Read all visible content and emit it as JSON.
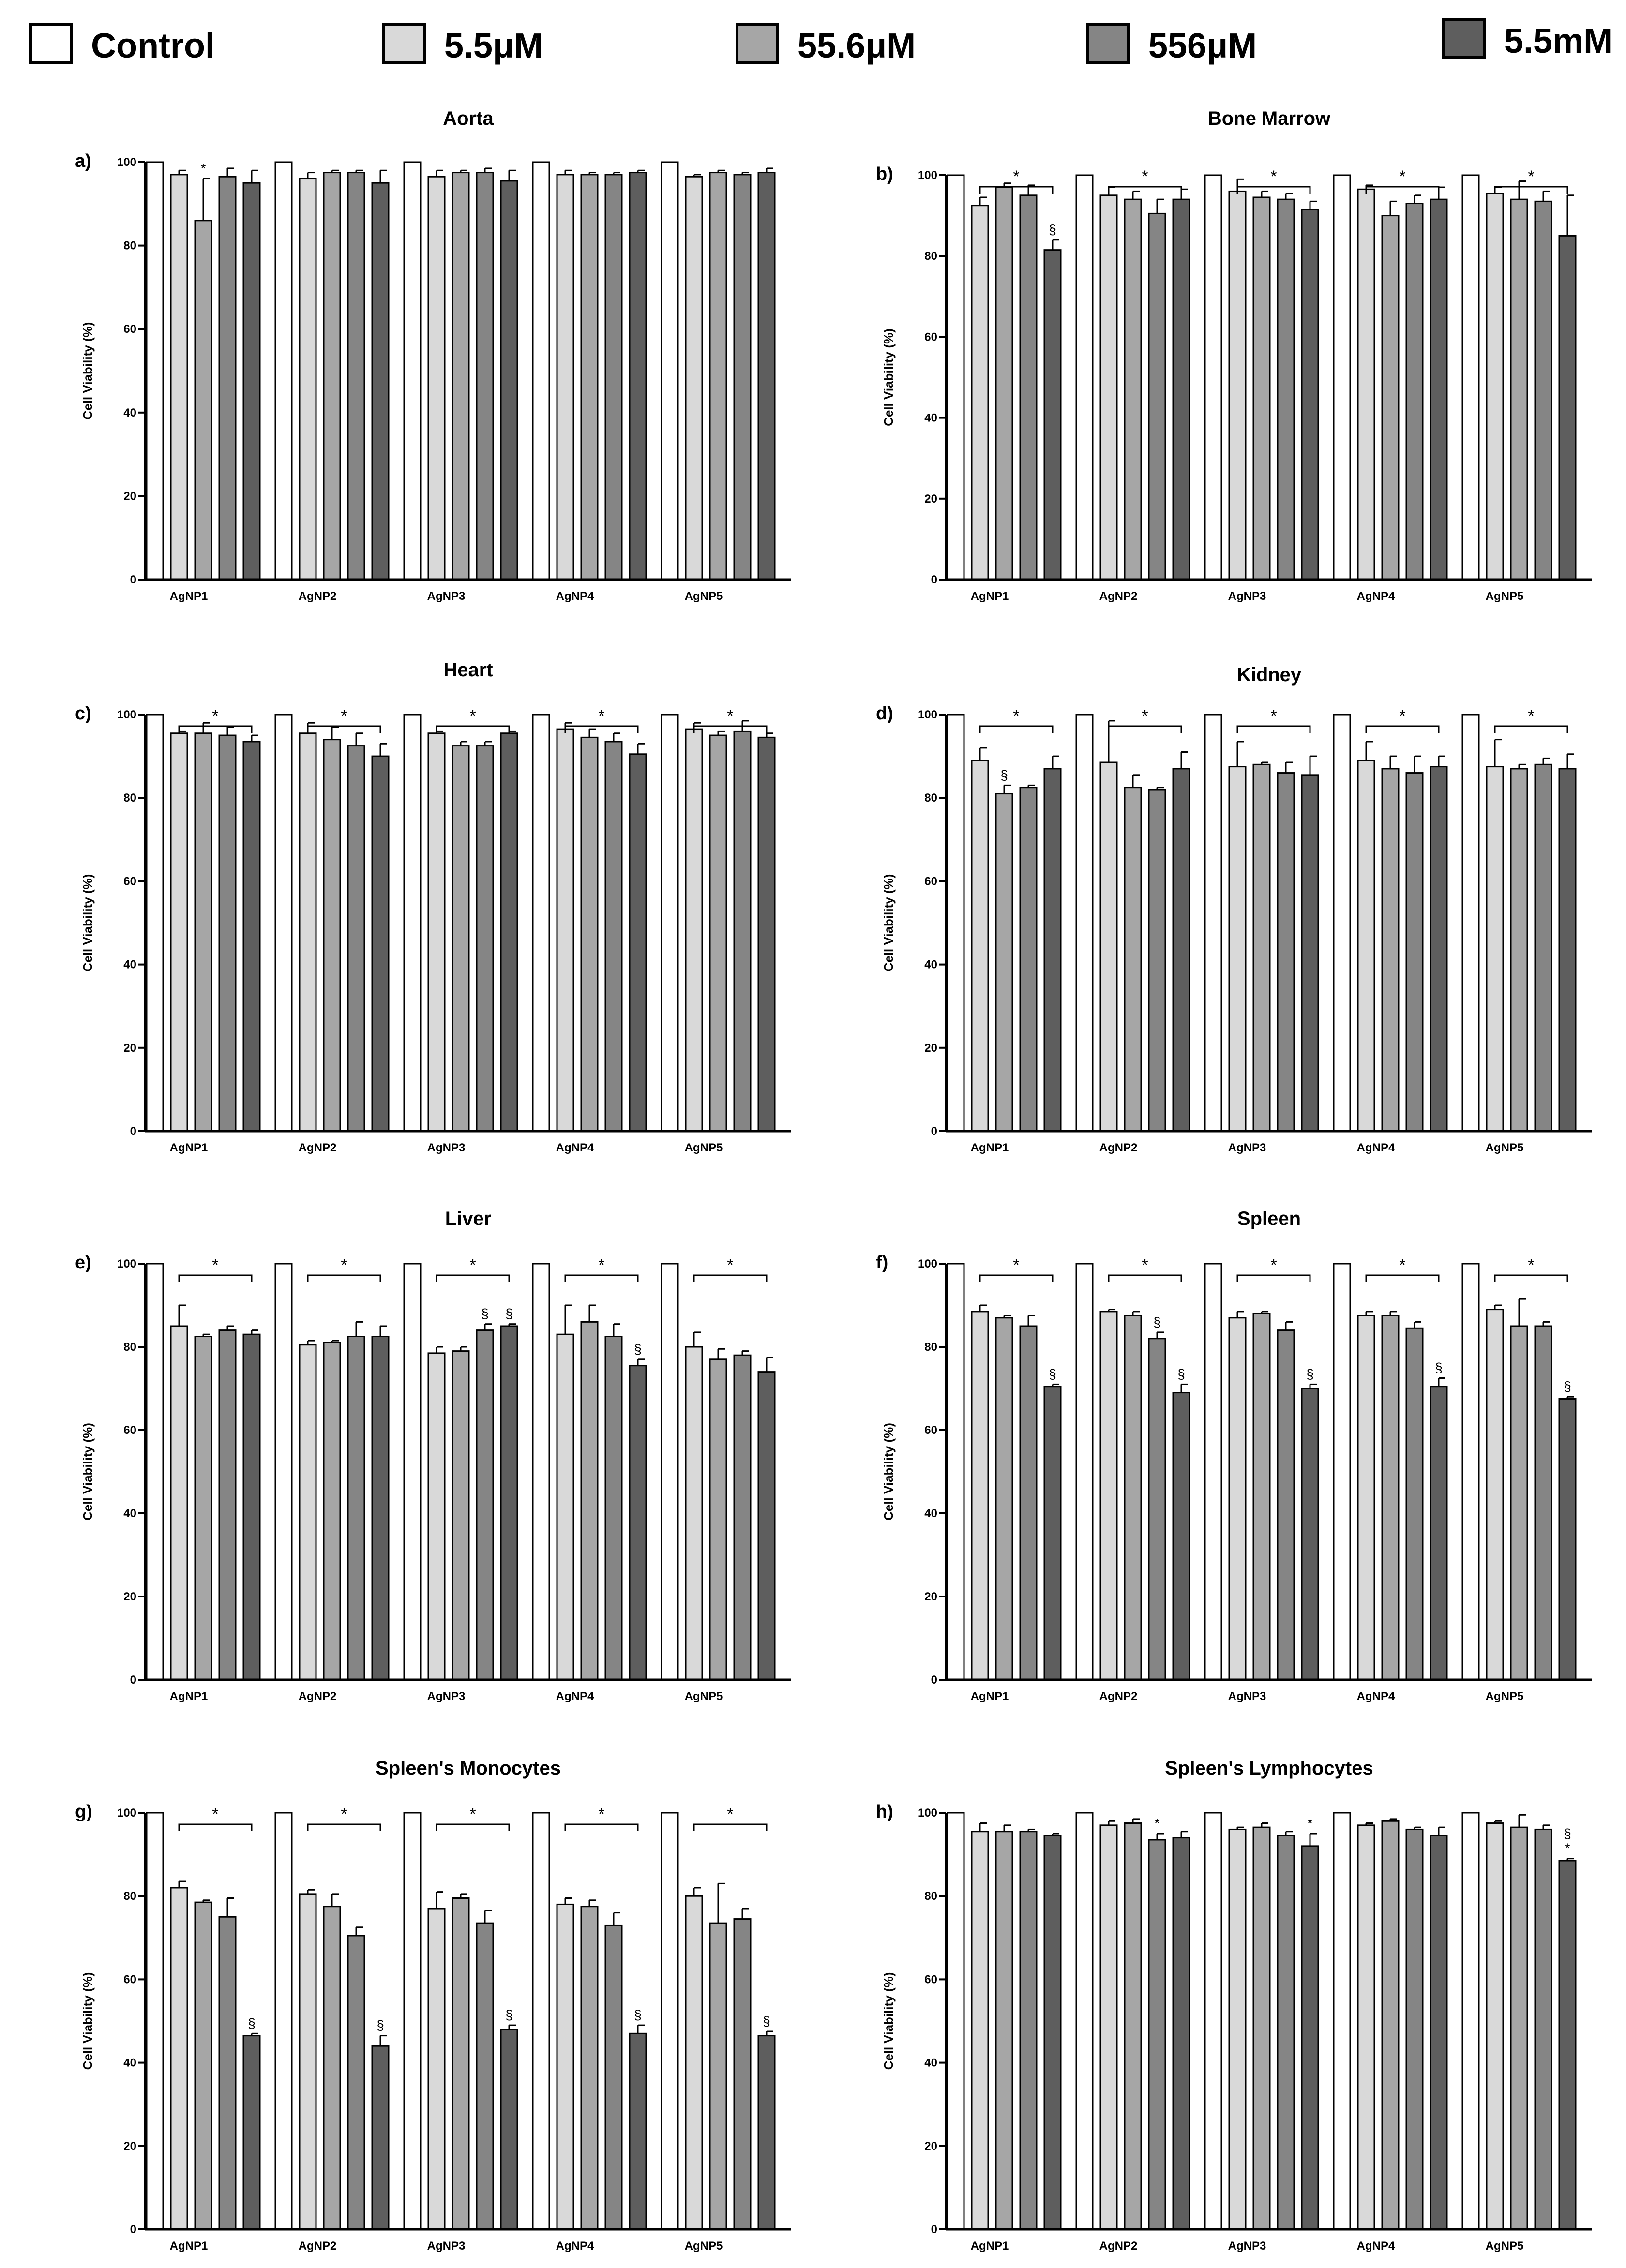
{
  "legend": [
    {
      "label": "Control",
      "color": "#ffffff"
    },
    {
      "label": "5.5μM",
      "color": "#d9d9d9"
    },
    {
      "label": "55.6μM",
      "color": "#a6a6a6"
    },
    {
      "label": "556μM",
      "color": "#858585"
    },
    {
      "label": "5.5mM",
      "color": "#5e5e5e"
    }
  ],
  "chart_data": [
    {
      "type": "bar",
      "letter": "a)",
      "title": "Aorta",
      "ylabel": "Cell Viability (%)",
      "ylim": [
        0,
        100
      ],
      "yticks": [
        0,
        20,
        40,
        60,
        80,
        100
      ],
      "categories": [
        "AgNP1",
        "AgNP2",
        "AgNP3",
        "AgNP4",
        "AgNP5"
      ],
      "series": [
        {
          "name": "Control",
          "values": [
            100,
            100,
            100,
            100,
            100
          ],
          "errors": [
            0,
            0,
            0,
            0,
            0
          ]
        },
        {
          "name": "5.5μM",
          "values": [
            97,
            96,
            96.5,
            97,
            96.5
          ],
          "errors": [
            1,
            1.5,
            1.5,
            1,
            0.5
          ]
        },
        {
          "name": "55.6μM",
          "values": [
            86,
            97.5,
            97.5,
            97,
            97.5
          ],
          "errors": [
            10,
            0.5,
            0.5,
            0.5,
            0.5
          ]
        },
        {
          "name": "556μM",
          "values": [
            96.5,
            97.5,
            97.5,
            97,
            97
          ],
          "errors": [
            2,
            0.5,
            1,
            0.5,
            0.5
          ]
        },
        {
          "name": "5.5mM",
          "values": [
            95,
            95,
            95.5,
            97.5,
            97.5
          ],
          "errors": [
            3,
            3,
            2.5,
            0.5,
            1
          ]
        }
      ],
      "group_annotations": [],
      "bar_annotations": [
        {
          "group": 0,
          "series": 2,
          "text": "*"
        }
      ]
    },
    {
      "type": "bar",
      "letter": "b)",
      "title": "Bone Marrow",
      "ylabel": "Cell Viability (%)",
      "ylim": [
        0,
        100
      ],
      "yticks": [
        0,
        20,
        40,
        60,
        80,
        100
      ],
      "categories": [
        "AgNP1",
        "AgNP2",
        "AgNP3",
        "AgNP4",
        "AgNP5"
      ],
      "series": [
        {
          "name": "Control",
          "values": [
            100,
            100,
            100,
            100,
            100
          ],
          "errors": [
            0,
            0,
            0,
            0,
            0
          ]
        },
        {
          "name": "5.5μM",
          "values": [
            92.5,
            95,
            96,
            96.5,
            95.5
          ],
          "errors": [
            2,
            2,
            3,
            1,
            1.5
          ]
        },
        {
          "name": "55.6μM",
          "values": [
            97,
            94,
            94.5,
            90,
            94
          ],
          "errors": [
            1,
            2,
            1.5,
            3.5,
            4.5
          ]
        },
        {
          "name": "556μM",
          "values": [
            95,
            90.5,
            94,
            93,
            93.5
          ],
          "errors": [
            2.5,
            3.5,
            1.5,
            2,
            2.5
          ]
        },
        {
          "name": "5.5mM",
          "values": [
            81.5,
            94,
            91.5,
            94,
            85
          ],
          "errors": [
            2.5,
            2.5,
            2,
            3,
            10
          ]
        }
      ],
      "group_annotations": [
        "*",
        "*",
        "*",
        "*",
        "*"
      ],
      "bar_annotations": [
        {
          "group": 0,
          "series": 4,
          "text": "§"
        }
      ]
    },
    {
      "type": "bar",
      "letter": "c)",
      "title": "Heart",
      "ylabel": "Cell Viability (%)",
      "ylim": [
        0,
        100
      ],
      "yticks": [
        0,
        20,
        40,
        60,
        80,
        100
      ],
      "categories": [
        "AgNP1",
        "AgNP2",
        "AgNP3",
        "AgNP4",
        "AgNP5"
      ],
      "series": [
        {
          "name": "Control",
          "values": [
            100,
            100,
            100,
            100,
            100
          ],
          "errors": [
            0,
            0,
            0,
            0,
            0
          ]
        },
        {
          "name": "5.5μM",
          "values": [
            95.5,
            95.5,
            95.5,
            96.5,
            96.5
          ],
          "errors": [
            0.5,
            2.5,
            0.5,
            1.5,
            1.5
          ]
        },
        {
          "name": "55.6μM",
          "values": [
            95.5,
            94,
            92.5,
            94.5,
            95
          ],
          "errors": [
            2.5,
            3,
            1,
            2,
            1
          ]
        },
        {
          "name": "556μM",
          "values": [
            95,
            92.5,
            92.5,
            93.5,
            96
          ],
          "errors": [
            2,
            3,
            1,
            2,
            2.5
          ]
        },
        {
          "name": "5.5mM",
          "values": [
            93.5,
            90,
            95.5,
            90.5,
            94.5
          ],
          "errors": [
            1.5,
            3,
            0.5,
            2.5,
            1
          ]
        }
      ],
      "group_annotations": [
        "*",
        "*",
        "*",
        "*",
        "*"
      ],
      "bar_annotations": []
    },
    {
      "type": "bar",
      "letter": "d)",
      "title": "Kidney",
      "ylabel": "Cell Viability (%)",
      "ylim": [
        0,
        100
      ],
      "yticks": [
        0,
        20,
        40,
        60,
        80,
        100
      ],
      "categories": [
        "AgNP1",
        "AgNP2",
        "AgNP3",
        "AgNP4",
        "AgNP5"
      ],
      "series": [
        {
          "name": "Control",
          "values": [
            100,
            100,
            100,
            100,
            100
          ],
          "errors": [
            0,
            0,
            0,
            0,
            0
          ]
        },
        {
          "name": "5.5μM",
          "values": [
            89,
            88.5,
            87.5,
            89,
            87.5
          ],
          "errors": [
            3,
            10,
            6,
            4.5,
            6.5
          ]
        },
        {
          "name": "55.6μM",
          "values": [
            81,
            82.5,
            88,
            87,
            87
          ],
          "errors": [
            2,
            3,
            0.5,
            3,
            1
          ]
        },
        {
          "name": "556μM",
          "values": [
            82.5,
            82,
            86,
            86,
            88
          ],
          "errors": [
            0.5,
            0.5,
            2.5,
            4,
            1.5
          ]
        },
        {
          "name": "5.5mM",
          "values": [
            87,
            87,
            85.5,
            87.5,
            87
          ],
          "errors": [
            3,
            4,
            4.5,
            2.5,
            3.5
          ]
        }
      ],
      "group_annotations": [
        "*",
        "*",
        "*",
        "*",
        "*"
      ],
      "bar_annotations": [
        {
          "group": 0,
          "series": 2,
          "text": "§"
        }
      ]
    },
    {
      "type": "bar",
      "letter": "e)",
      "title": "Liver",
      "ylabel": "Cell Viability (%)",
      "ylim": [
        0,
        100
      ],
      "yticks": [
        0,
        20,
        40,
        60,
        80,
        100
      ],
      "categories": [
        "AgNP1",
        "AgNP2",
        "AgNP3",
        "AgNP4",
        "AgNP5"
      ],
      "series": [
        {
          "name": "Control",
          "values": [
            100,
            100,
            100,
            100,
            100
          ],
          "errors": [
            0,
            0,
            0,
            0,
            0
          ]
        },
        {
          "name": "5.5μM",
          "values": [
            85,
            80.5,
            78.5,
            83,
            80
          ],
          "errors": [
            5,
            1,
            1.5,
            7,
            3.5
          ]
        },
        {
          "name": "55.6μM",
          "values": [
            82.5,
            81,
            79,
            86,
            77
          ],
          "errors": [
            0.5,
            0.5,
            1,
            4,
            2.5
          ]
        },
        {
          "name": "556μM",
          "values": [
            84,
            82.5,
            84,
            82.5,
            78
          ],
          "errors": [
            1,
            3.5,
            1.5,
            3,
            1
          ]
        },
        {
          "name": "5.5mM",
          "values": [
            83,
            82.5,
            85,
            75.5,
            74
          ],
          "errors": [
            1,
            2.5,
            0.5,
            1.5,
            3.5
          ]
        }
      ],
      "group_annotations": [
        "*",
        "*",
        "*",
        "*",
        "*"
      ],
      "bar_annotations": [
        {
          "group": 2,
          "series": 3,
          "text": "§"
        },
        {
          "group": 2,
          "series": 4,
          "text": "§"
        },
        {
          "group": 3,
          "series": 4,
          "text": "§"
        }
      ]
    },
    {
      "type": "bar",
      "letter": "f)",
      "title": "Spleen",
      "ylabel": "Cell Viability (%)",
      "ylim": [
        0,
        100
      ],
      "yticks": [
        0,
        20,
        40,
        60,
        80,
        100
      ],
      "categories": [
        "AgNP1",
        "AgNP2",
        "AgNP3",
        "AgNP4",
        "AgNP5"
      ],
      "series": [
        {
          "name": "Control",
          "values": [
            100,
            100,
            100,
            100,
            100
          ],
          "errors": [
            0,
            0,
            0,
            0,
            0
          ]
        },
        {
          "name": "5.5μM",
          "values": [
            88.5,
            88.5,
            87,
            87.5,
            89
          ],
          "errors": [
            1.5,
            0.5,
            1.5,
            1,
            1
          ]
        },
        {
          "name": "55.6μM",
          "values": [
            87,
            87.5,
            88,
            87.5,
            85
          ],
          "errors": [
            0.5,
            1,
            0.5,
            1,
            6.5
          ]
        },
        {
          "name": "556μM",
          "values": [
            85,
            82,
            84,
            84.5,
            85
          ],
          "errors": [
            2.5,
            1.5,
            2,
            1.5,
            1
          ]
        },
        {
          "name": "5.5mM",
          "values": [
            70.5,
            69,
            70,
            70.5,
            67.5
          ],
          "errors": [
            0.5,
            2,
            1,
            2,
            0.5
          ]
        }
      ],
      "group_annotations": [
        "*",
        "*",
        "*",
        "*",
        "*"
      ],
      "bar_annotations": [
        {
          "group": 0,
          "series": 4,
          "text": "§"
        },
        {
          "group": 1,
          "series": 3,
          "text": "§"
        },
        {
          "group": 1,
          "series": 4,
          "text": "§"
        },
        {
          "group": 2,
          "series": 4,
          "text": "§"
        },
        {
          "group": 3,
          "series": 4,
          "text": "§"
        },
        {
          "group": 4,
          "series": 4,
          "text": "§"
        }
      ]
    },
    {
      "type": "bar",
      "letter": "g)",
      "title": "Spleen's Monocytes",
      "ylabel": "Cell Viability (%)",
      "ylim": [
        0,
        100
      ],
      "yticks": [
        0,
        20,
        40,
        60,
        80,
        100
      ],
      "categories": [
        "AgNP1",
        "AgNP2",
        "AgNP3",
        "AgNP4",
        "AgNP5"
      ],
      "series": [
        {
          "name": "Control",
          "values": [
            100,
            100,
            100,
            100,
            100
          ],
          "errors": [
            0,
            0,
            0,
            0,
            0
          ]
        },
        {
          "name": "5.5μM",
          "values": [
            82,
            80.5,
            77,
            78,
            80
          ],
          "errors": [
            1.5,
            1,
            4,
            1.5,
            2
          ]
        },
        {
          "name": "55.6μM",
          "values": [
            78.5,
            77.5,
            79.5,
            77.5,
            73.5
          ],
          "errors": [
            0.5,
            3,
            1,
            1.5,
            9.5
          ]
        },
        {
          "name": "556μM",
          "values": [
            75,
            70.5,
            73.5,
            73,
            74.5
          ],
          "errors": [
            4.5,
            2,
            3,
            3,
            2.5
          ]
        },
        {
          "name": "5.5mM",
          "values": [
            46.5,
            44,
            48,
            47,
            46.5
          ],
          "errors": [
            0.5,
            2.5,
            1,
            2,
            1
          ]
        }
      ],
      "group_annotations": [
        "*",
        "*",
        "*",
        "*",
        "*"
      ],
      "bar_annotations": [
        {
          "group": 0,
          "series": 4,
          "text": "§"
        },
        {
          "group": 1,
          "series": 4,
          "text": "§"
        },
        {
          "group": 2,
          "series": 4,
          "text": "§"
        },
        {
          "group": 3,
          "series": 4,
          "text": "§"
        },
        {
          "group": 4,
          "series": 4,
          "text": "§"
        }
      ]
    },
    {
      "type": "bar",
      "letter": "h)",
      "title": "Spleen's Lymphocytes",
      "ylabel": "Cell Viability (%)",
      "ylim": [
        0,
        100
      ],
      "yticks": [
        0,
        20,
        40,
        60,
        80,
        100
      ],
      "categories": [
        "AgNP1",
        "AgNP2",
        "AgNP3",
        "AgNP4",
        "AgNP5"
      ],
      "series": [
        {
          "name": "Control",
          "values": [
            100,
            100,
            100,
            100,
            100
          ],
          "errors": [
            0,
            0,
            0,
            0,
            0
          ]
        },
        {
          "name": "5.5μM",
          "values": [
            95.5,
            97,
            96,
            97,
            97.5
          ],
          "errors": [
            2,
            1,
            0.5,
            0.5,
            0.5
          ]
        },
        {
          "name": "55.6μM",
          "values": [
            95.5,
            97.5,
            96.5,
            98,
            96.5
          ],
          "errors": [
            1.5,
            1,
            1,
            0.5,
            3
          ]
        },
        {
          "name": "556μM",
          "values": [
            95.5,
            93.5,
            94.5,
            96,
            96
          ],
          "errors": [
            0.5,
            1.5,
            1,
            0.5,
            1
          ]
        },
        {
          "name": "5.5mM",
          "values": [
            94.5,
            94,
            92,
            94.5,
            88.5
          ],
          "errors": [
            0.5,
            1.5,
            3,
            2,
            0.5
          ]
        }
      ],
      "group_annotations": [],
      "bar_annotations": [
        {
          "group": 1,
          "series": 3,
          "text": "*"
        },
        {
          "group": 2,
          "series": 4,
          "text": "*"
        },
        {
          "group": 4,
          "series": 4,
          "text": "*"
        },
        {
          "group": 4,
          "series": 4,
          "text": "§"
        }
      ]
    }
  ]
}
